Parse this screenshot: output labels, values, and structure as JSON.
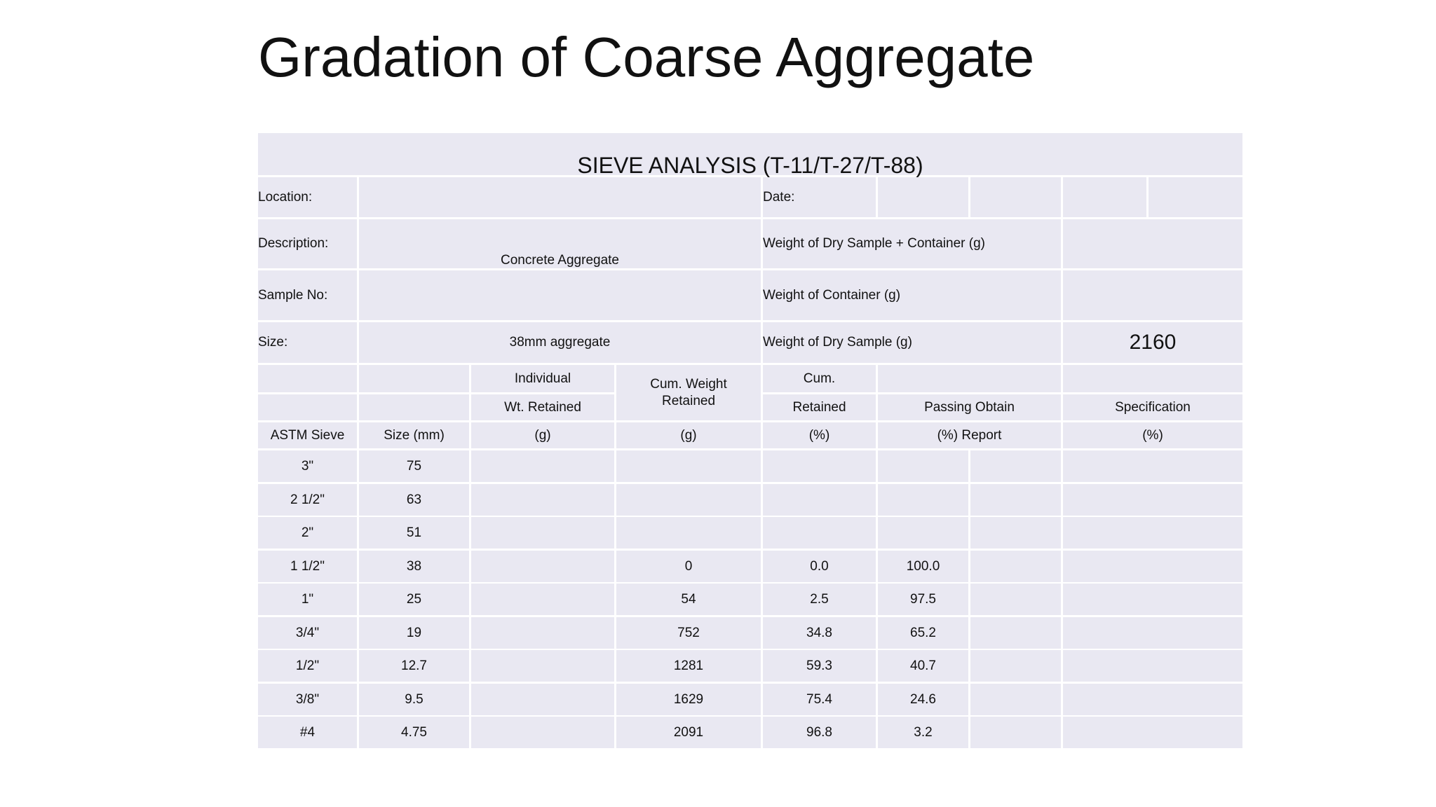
{
  "slide": {
    "title": "Gradation of Coarse Aggregate"
  },
  "table": {
    "heading": "SIEVE ANALYSIS (T-11/T-27/T-88)",
    "info": {
      "location_label": "Location:",
      "date_label": "Date:",
      "description_label": "Description:",
      "description_value": "Concrete Aggregate",
      "dry_sample_container_label": "Weight of Dry Sample + Container (g)",
      "sample_no_label": "Sample No:",
      "container_label": "Weight of Container (g)",
      "size_label": "Size:",
      "size_value": "38mm aggregate",
      "dry_sample_label": "Weight of  Dry Sample (g)",
      "dry_sample_value": "2160"
    },
    "columns": {
      "astm_sieve": "ASTM Sieve",
      "size_mm": "Size (mm)",
      "individual_1": "Individual",
      "individual_2": "Wt. Retained",
      "individual_3": "(g)",
      "cum_weight_1": "Cum. Weight",
      "cum_weight_2": "Retained",
      "cum_weight_3": "(g)",
      "cum_retained_1": "Cum.",
      "cum_retained_2": "Retained",
      "cum_retained_3": "(%)",
      "passing_1": "Passing Obtain",
      "passing_2": "(%) Report",
      "spec_1": "Specification",
      "spec_2": "(%)"
    },
    "rows": [
      {
        "sieve": "3\"",
        "size": "75",
        "individual": "",
        "cum_weight": "",
        "cum_retained": "",
        "passing": ""
      },
      {
        "sieve": "2 1/2\"",
        "size": "63",
        "individual": "",
        "cum_weight": "",
        "cum_retained": "",
        "passing": ""
      },
      {
        "sieve": "2\"",
        "size": "51",
        "individual": "",
        "cum_weight": "",
        "cum_retained": "",
        "passing": ""
      },
      {
        "sieve": "1 1/2\"",
        "size": "38",
        "individual": "",
        "cum_weight": "0",
        "cum_retained": "0.0",
        "passing": "100.0"
      },
      {
        "sieve": "1\"",
        "size": "25",
        "individual": "",
        "cum_weight": "54",
        "cum_retained": "2.5",
        "passing": "97.5"
      },
      {
        "sieve": "3/4\"",
        "size": "19",
        "individual": "",
        "cum_weight": "752",
        "cum_retained": "34.8",
        "passing": "65.2"
      },
      {
        "sieve": "1/2\"",
        "size": "12.7",
        "individual": "",
        "cum_weight": "1281",
        "cum_retained": "59.3",
        "passing": "40.7"
      },
      {
        "sieve": "3/8\"",
        "size": "9.5",
        "individual": "",
        "cum_weight": "1629",
        "cum_retained": "75.4",
        "passing": "24.6"
      },
      {
        "sieve": "#4",
        "size": "4.75",
        "individual": "",
        "cum_weight": "2091",
        "cum_retained": "96.8",
        "passing": "3.2"
      }
    ]
  }
}
